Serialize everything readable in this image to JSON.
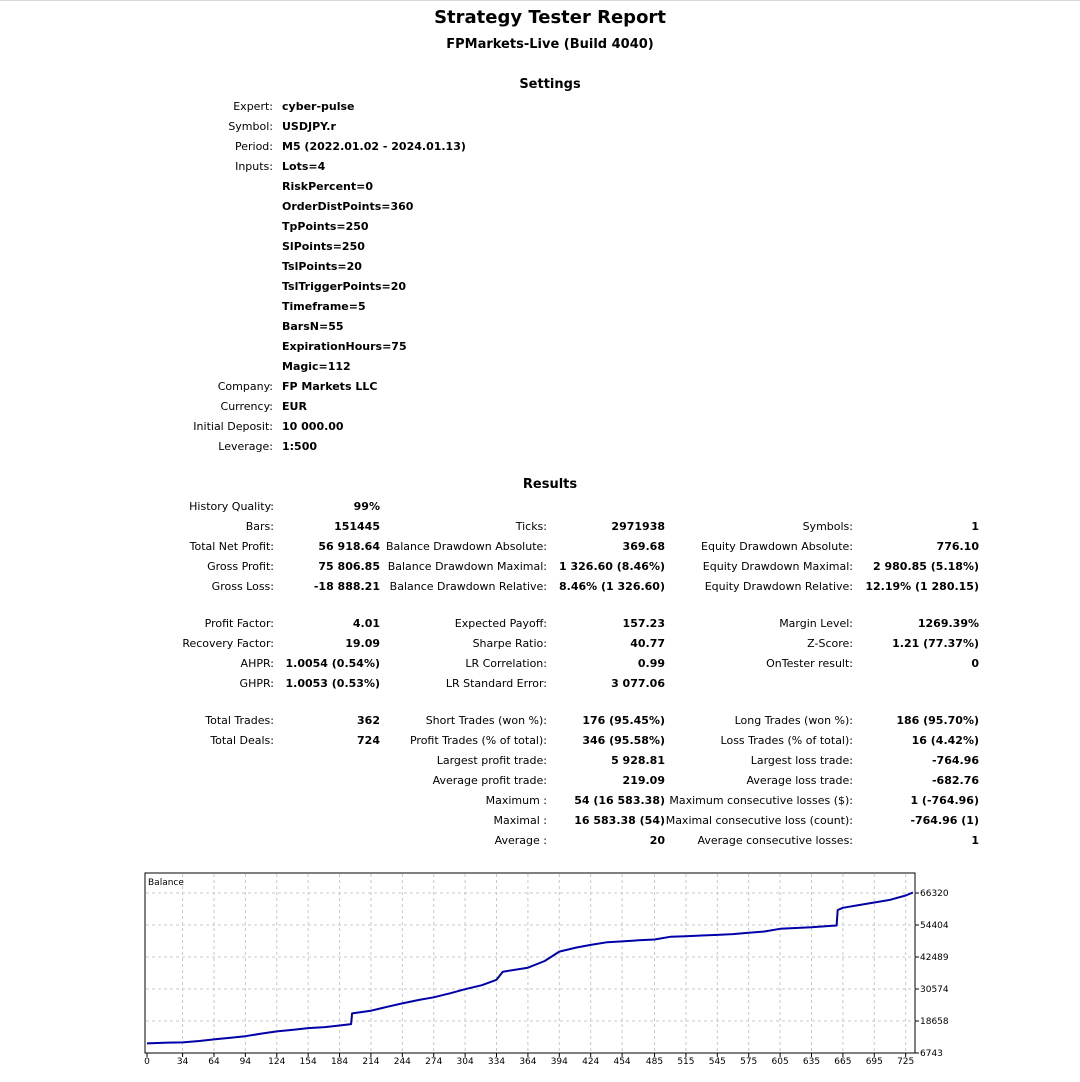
{
  "header": {
    "title": "Strategy Tester Report",
    "subtitle": "FPMarkets-Live (Build 4040)"
  },
  "settings": {
    "heading": "Settings",
    "rows": [
      {
        "label": "Expert:",
        "value": "cyber-pulse"
      },
      {
        "label": "Symbol:",
        "value": "USDJPY.r"
      },
      {
        "label": "Period:",
        "value": "M5 (2022.01.02 - 2024.01.13)"
      },
      {
        "label": "Inputs:",
        "value": "Lots=4"
      },
      {
        "label": "",
        "value": "RiskPercent=0"
      },
      {
        "label": "",
        "value": "OrderDistPoints=360"
      },
      {
        "label": "",
        "value": "TpPoints=250"
      },
      {
        "label": "",
        "value": "SlPoints=250"
      },
      {
        "label": "",
        "value": "TslPoints=20"
      },
      {
        "label": "",
        "value": "TslTriggerPoints=20"
      },
      {
        "label": "",
        "value": "Timeframe=5"
      },
      {
        "label": "",
        "value": "BarsN=55"
      },
      {
        "label": "",
        "value": "ExpirationHours=75"
      },
      {
        "label": "",
        "value": "Magic=112"
      },
      {
        "label": "Company:",
        "value": "FP Markets LLC"
      },
      {
        "label": "Currency:",
        "value": "EUR"
      },
      {
        "label": "Initial Deposit:",
        "value": "10 000.00"
      },
      {
        "label": "Leverage:",
        "value": "1:500"
      }
    ]
  },
  "results": {
    "heading": "Results",
    "rows": [
      {
        "y": 506,
        "cells": [
          [
            "History Quality:",
            "99%"
          ]
        ]
      },
      {
        "y": 526,
        "cells": [
          [
            "Bars:",
            "151445"
          ],
          [
            "Ticks:",
            "2971938"
          ],
          [
            "Symbols:",
            "1"
          ]
        ]
      },
      {
        "y": 546,
        "cells": [
          [
            "Total Net Profit:",
            "56 918.64"
          ],
          [
            "Balance Drawdown Absolute:",
            "369.68"
          ],
          [
            "Equity Drawdown Absolute:",
            "776.10"
          ]
        ]
      },
      {
        "y": 566,
        "cells": [
          [
            "Gross Profit:",
            "75 806.85"
          ],
          [
            "Balance Drawdown Maximal:",
            "1 326.60 (8.46%)"
          ],
          [
            "Equity Drawdown Maximal:",
            "2 980.85 (5.18%)"
          ]
        ]
      },
      {
        "y": 586,
        "cells": [
          [
            "Gross Loss:",
            "-18 888.21"
          ],
          [
            "Balance Drawdown Relative:",
            "8.46% (1 326.60)"
          ],
          [
            "Equity Drawdown Relative:",
            "12.19% (1 280.15)"
          ]
        ]
      },
      {
        "y": 623,
        "cells": [
          [
            "Profit Factor:",
            "4.01"
          ],
          [
            "Expected Payoff:",
            "157.23"
          ],
          [
            "Margin Level:",
            "1269.39%"
          ]
        ]
      },
      {
        "y": 643,
        "cells": [
          [
            "Recovery Factor:",
            "19.09"
          ],
          [
            "Sharpe Ratio:",
            "40.77"
          ],
          [
            "Z-Score:",
            "1.21 (77.37%)"
          ]
        ]
      },
      {
        "y": 663,
        "cells": [
          [
            "AHPR:",
            "1.0054 (0.54%)"
          ],
          [
            "LR Correlation:",
            "0.99"
          ],
          [
            "OnTester result:",
            "0"
          ]
        ]
      },
      {
        "y": 683,
        "cells": [
          [
            "GHPR:",
            "1.0053 (0.53%)"
          ],
          [
            "LR Standard Error:",
            "3 077.06"
          ]
        ]
      },
      {
        "y": 720,
        "cells": [
          [
            "Total Trades:",
            "362"
          ],
          [
            "Short Trades (won %):",
            "176 (95.45%)"
          ],
          [
            "Long Trades (won %):",
            "186 (95.70%)"
          ]
        ]
      },
      {
        "y": 740,
        "cells": [
          [
            "Total Deals:",
            "724"
          ],
          [
            "Profit Trades (% of total):",
            "346 (95.58%)"
          ],
          [
            "Loss Trades (% of total):",
            "16 (4.42%)"
          ]
        ]
      },
      {
        "y": 760,
        "cells": [
          null,
          [
            "Largest profit trade:",
            "5 928.81"
          ],
          [
            "Largest loss trade:",
            "-764.96"
          ]
        ]
      },
      {
        "y": 780,
        "cells": [
          null,
          [
            "Average profit trade:",
            "219.09"
          ],
          [
            "Average loss trade:",
            "-682.76"
          ]
        ]
      },
      {
        "y": 800,
        "cells": [
          null,
          [
            "Maximum :",
            "54 (16 583.38)"
          ],
          [
            "Maximum consecutive losses ($):",
            "1 (-764.96)"
          ]
        ]
      },
      {
        "y": 820,
        "cells": [
          null,
          [
            "Maximal :",
            "16 583.38 (54)"
          ],
          [
            "Maximal consecutive loss (count):",
            "-764.96 (1)"
          ]
        ]
      },
      {
        "y": 840,
        "cells": [
          null,
          [
            "Average :",
            "20"
          ],
          [
            "Average consecutive losses:",
            "1"
          ]
        ]
      }
    ]
  },
  "chart_data": {
    "type": "line",
    "title": "Balance",
    "xlabel": "",
    "ylabel": "",
    "x_ticks": [
      0,
      34,
      64,
      94,
      124,
      154,
      184,
      214,
      244,
      274,
      304,
      334,
      364,
      394,
      424,
      454,
      485,
      515,
      545,
      575,
      605,
      635,
      665,
      695,
      725
    ],
    "y_ticks": [
      6743,
      18658,
      30574,
      42489,
      54404,
      66320
    ],
    "xlim": [
      0,
      732
    ],
    "ylim": [
      6743,
      66320
    ],
    "grid": true,
    "line_color": "#0000aa",
    "series": [
      {
        "name": "",
        "x": [
          0,
          20,
          34,
          50,
          64,
          80,
          94,
          110,
          124,
          140,
          154,
          170,
          184,
          195,
          196,
          214,
          230,
          244,
          260,
          274,
          290,
          304,
          320,
          334,
          340,
          364,
          380,
          394,
          410,
          424,
          440,
          454,
          470,
          485,
          500,
          515,
          530,
          545,
          560,
          575,
          590,
          605,
          620,
          635,
          650,
          659,
          660,
          665,
          680,
          695,
          710,
          725,
          732
        ],
        "y": [
          10300,
          10600,
          10700,
          11200,
          11800,
          12400,
          13000,
          14000,
          14800,
          15400,
          16000,
          16400,
          17000,
          17500,
          21500,
          22500,
          24000,
          25200,
          26500,
          27500,
          29000,
          30500,
          32000,
          34000,
          37000,
          38500,
          41000,
          44500,
          46000,
          47000,
          48000,
          48300,
          48700,
          49000,
          50000,
          50200,
          50500,
          50700,
          51000,
          51500,
          52000,
          53000,
          53300,
          53600,
          54000,
          54200,
          60000,
          60800,
          61800,
          62800,
          63800,
          65400,
          66500
        ]
      }
    ]
  }
}
